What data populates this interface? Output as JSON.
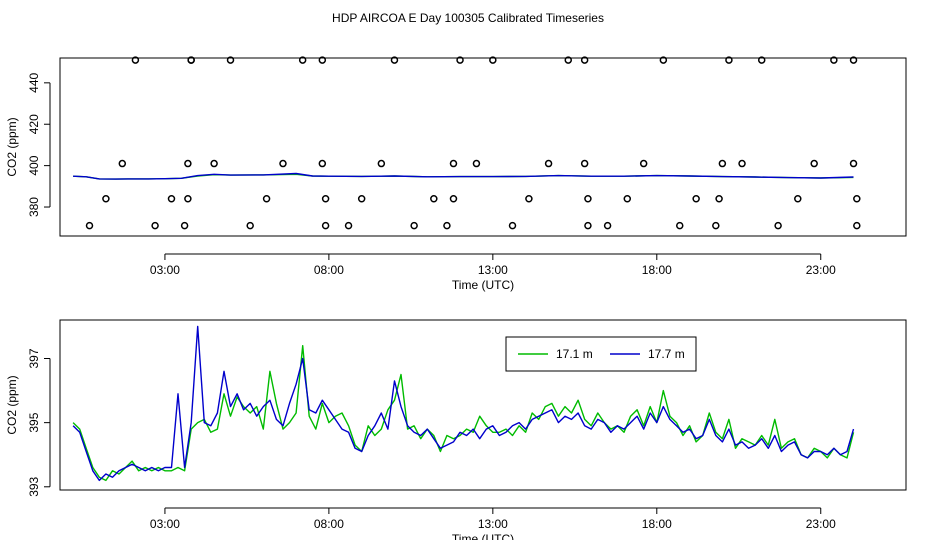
{
  "title": "HDP AIRCOA E  Day 100305  Calibrated Timeseries",
  "colors": {
    "s1": "#00bb00",
    "s2": "#0000cc",
    "axis": "#000000"
  },
  "chart_data": [
    {
      "type": "line",
      "xlabel": "Time (UTC)",
      "ylabel": "CO2 (ppm)",
      "x_tick_labels": [
        "03:00",
        "08:00",
        "13:00",
        "18:00",
        "23:00"
      ],
      "x_ticks": [
        3,
        8,
        13,
        18,
        23
      ],
      "y_ticks": [
        380,
        400,
        420,
        440
      ],
      "xlim": [
        -0.2,
        25.6
      ],
      "ylim": [
        366,
        452
      ],
      "box": true,
      "legend": "none",
      "series": [
        {
          "name": "",
          "color": "#00bb00",
          "x": [
            0.2,
            0.6,
            1.0,
            1.5,
            2.0,
            2.5,
            3.0,
            3.5,
            4.0,
            4.5,
            5.0,
            6.0,
            7.0,
            7.5,
            8.0,
            9.0,
            10.0,
            11.0,
            12.0,
            13.0,
            14.0,
            15.0,
            16.0,
            17.0,
            18.0,
            19.0,
            20.0,
            21.0,
            22.0,
            23.0,
            24.0
          ],
          "y": [
            394.9,
            394.6,
            393.6,
            393.5,
            393.6,
            393.6,
            393.7,
            393.9,
            395.0,
            395.6,
            395.4,
            395.5,
            395.8,
            395.0,
            394.9,
            394.8,
            395.0,
            394.6,
            394.7,
            394.7,
            394.8,
            395.2,
            394.9,
            394.9,
            395.2,
            395.0,
            394.7,
            394.5,
            394.2,
            394.0,
            394.3
          ]
        },
        {
          "name": "",
          "color": "#0000cc",
          "x": [
            0.2,
            0.6,
            1.0,
            1.5,
            2.0,
            2.5,
            3.0,
            3.5,
            4.0,
            4.5,
            5.0,
            6.0,
            7.0,
            7.5,
            8.0,
            9.0,
            10.0,
            11.0,
            12.0,
            13.0,
            14.0,
            15.0,
            16.0,
            17.0,
            18.0,
            19.0,
            20.0,
            21.0,
            22.0,
            23.0,
            24.0
          ],
          "y": [
            394.9,
            394.6,
            393.6,
            393.5,
            393.6,
            393.6,
            393.7,
            393.9,
            395.2,
            395.8,
            395.4,
            395.5,
            396.2,
            395.0,
            394.9,
            394.8,
            395.0,
            394.6,
            394.7,
            394.7,
            394.8,
            395.2,
            394.9,
            394.9,
            395.2,
            395.0,
            394.7,
            394.5,
            394.2,
            394.0,
            394.5
          ]
        }
      ],
      "calibration_points": {
        "x": [
          0.7,
          1.2,
          1.7,
          2.1,
          2.7,
          3.2,
          3.6,
          3.7,
          3.7,
          3.8,
          3.8,
          4.5,
          5.0,
          5.6,
          6.1,
          6.6,
          7.2,
          7.8,
          7.8,
          7.9,
          7.9,
          8.6,
          9.0,
          9.6,
          10.0,
          10.6,
          11.2,
          11.6,
          11.8,
          11.8,
          12.0,
          12.5,
          13.0,
          13.6,
          14.1,
          14.7,
          15.3,
          15.8,
          15.8,
          15.9,
          15.9,
          16.5,
          17.1,
          17.6,
          18.2,
          18.7,
          19.2,
          19.8,
          19.9,
          20.0,
          20.2,
          20.6,
          21.2,
          21.7,
          22.3,
          22.8,
          23.4,
          24.0,
          24.0,
          24.1,
          24.1
        ],
        "y": [
          371,
          384,
          401,
          451,
          371,
          384,
          371,
          384,
          401,
          451,
          451,
          401,
          451,
          371,
          384,
          401,
          451,
          451,
          401,
          384,
          371,
          371,
          384,
          401,
          451,
          371,
          384,
          371,
          384,
          401,
          451,
          401,
          451,
          371,
          384,
          401,
          451,
          451,
          401,
          384,
          371,
          371,
          384,
          401,
          451,
          371,
          384,
          371,
          384,
          401,
          451,
          401,
          451,
          371,
          384,
          401,
          451,
          451,
          401,
          384,
          371
        ]
      }
    },
    {
      "type": "line",
      "xlabel": "Time (UTC)",
      "ylabel": "CO2 (ppm)",
      "x_tick_labels": [
        "03:00",
        "08:00",
        "13:00",
        "18:00",
        "23:00"
      ],
      "x_ticks": [
        3,
        8,
        13,
        18,
        23
      ],
      "y_ticks": [
        393,
        395,
        397
      ],
      "xlim": [
        -0.2,
        25.6
      ],
      "ylim": [
        392.9,
        398.2
      ],
      "box": true,
      "legend": "top-center",
      "series": [
        {
          "name": "17.1 m",
          "color": "#00bb00",
          "x": [
            0.2,
            0.4,
            0.6,
            0.8,
            1.0,
            1.2,
            1.4,
            1.6,
            1.8,
            2.0,
            2.2,
            2.4,
            2.6,
            2.8,
            3.0,
            3.2,
            3.4,
            3.6,
            3.8,
            4.0,
            4.2,
            4.4,
            4.6,
            4.8,
            5.0,
            5.2,
            5.4,
            5.6,
            5.8,
            6.0,
            6.2,
            6.4,
            6.6,
            6.8,
            7.0,
            7.2,
            7.4,
            7.6,
            7.8,
            8.0,
            8.2,
            8.4,
            8.6,
            8.8,
            9.0,
            9.2,
            9.4,
            9.6,
            9.8,
            10.0,
            10.2,
            10.4,
            10.6,
            10.8,
            11.0,
            11.2,
            11.4,
            11.6,
            11.8,
            12.0,
            12.2,
            12.4,
            12.6,
            12.8,
            13.0,
            13.2,
            13.4,
            13.6,
            13.8,
            14.0,
            14.2,
            14.4,
            14.6,
            14.8,
            15.0,
            15.2,
            15.4,
            15.6,
            15.8,
            16.0,
            16.2,
            16.4,
            16.6,
            16.8,
            17.0,
            17.2,
            17.4,
            17.6,
            17.8,
            18.0,
            18.2,
            18.4,
            18.6,
            18.8,
            19.0,
            19.2,
            19.4,
            19.6,
            19.8,
            20.0,
            20.2,
            20.4,
            20.6,
            20.8,
            21.0,
            21.2,
            21.4,
            21.6,
            21.8,
            22.0,
            22.2,
            22.4,
            22.6,
            22.8,
            23.0,
            23.2,
            23.4,
            23.6,
            23.8,
            24.0
          ],
          "y": [
            395.0,
            394.8,
            394.2,
            393.6,
            393.3,
            393.2,
            393.5,
            393.4,
            393.6,
            393.8,
            393.5,
            393.6,
            393.5,
            393.6,
            393.5,
            393.5,
            393.6,
            393.5,
            394.8,
            395.0,
            395.1,
            394.7,
            394.8,
            395.9,
            395.2,
            395.8,
            395.5,
            395.3,
            395.5,
            394.8,
            396.6,
            395.6,
            394.8,
            395.0,
            395.3,
            397.4,
            395.2,
            394.8,
            395.6,
            395.0,
            395.2,
            395.3,
            394.9,
            394.3,
            394.1,
            394.9,
            394.6,
            394.8,
            395.4,
            395.7,
            396.5,
            394.8,
            394.9,
            394.5,
            394.8,
            394.6,
            394.1,
            394.6,
            394.5,
            394.6,
            394.8,
            394.7,
            395.2,
            394.9,
            394.7,
            394.7,
            394.8,
            394.6,
            394.9,
            394.7,
            395.3,
            395.1,
            395.5,
            395.6,
            395.2,
            395.5,
            395.3,
            395.7,
            395.1,
            394.9,
            395.3,
            395.0,
            394.8,
            394.9,
            394.7,
            395.2,
            395.4,
            394.9,
            395.5,
            395.0,
            396.0,
            395.2,
            395.0,
            394.6,
            394.9,
            394.4,
            394.6,
            395.3,
            394.7,
            394.5,
            395.1,
            394.2,
            394.5,
            394.4,
            394.3,
            394.6,
            394.3,
            395.1,
            394.2,
            394.4,
            394.5,
            394.0,
            393.9,
            394.2,
            394.1,
            393.9,
            394.2,
            394.0,
            393.9,
            394.7
          ]
        },
        {
          "name": "17.7 m",
          "color": "#0000cc",
          "x": [
            0.2,
            0.4,
            0.6,
            0.8,
            1.0,
            1.2,
            1.4,
            1.6,
            1.8,
            2.0,
            2.2,
            2.4,
            2.6,
            2.8,
            3.0,
            3.2,
            3.4,
            3.6,
            3.8,
            4.0,
            4.2,
            4.4,
            4.6,
            4.8,
            5.0,
            5.2,
            5.4,
            5.6,
            5.8,
            6.0,
            6.2,
            6.4,
            6.6,
            6.8,
            7.0,
            7.2,
            7.4,
            7.6,
            7.8,
            8.0,
            8.2,
            8.4,
            8.6,
            8.8,
            9.0,
            9.2,
            9.4,
            9.6,
            9.8,
            10.0,
            10.2,
            10.4,
            10.6,
            10.8,
            11.0,
            11.2,
            11.4,
            11.6,
            11.8,
            12.0,
            12.2,
            12.4,
            12.6,
            12.8,
            13.0,
            13.2,
            13.4,
            13.6,
            13.8,
            14.0,
            14.2,
            14.4,
            14.6,
            14.8,
            15.0,
            15.2,
            15.4,
            15.6,
            15.8,
            16.0,
            16.2,
            16.4,
            16.6,
            16.8,
            17.0,
            17.2,
            17.4,
            17.6,
            17.8,
            18.0,
            18.2,
            18.4,
            18.6,
            18.8,
            19.0,
            19.2,
            19.4,
            19.6,
            19.8,
            20.0,
            20.2,
            20.4,
            20.6,
            20.8,
            21.0,
            21.2,
            21.4,
            21.6,
            21.8,
            22.0,
            22.2,
            22.4,
            22.6,
            22.8,
            23.0,
            23.2,
            23.4,
            23.6,
            23.8,
            24.0
          ],
          "y": [
            394.9,
            394.7,
            394.1,
            393.5,
            393.2,
            393.4,
            393.3,
            393.5,
            393.6,
            393.7,
            393.6,
            393.5,
            393.6,
            393.5,
            393.6,
            393.6,
            395.9,
            393.6,
            395.0,
            398.0,
            395.0,
            394.9,
            395.3,
            396.6,
            395.5,
            395.9,
            395.4,
            395.6,
            395.2,
            395.5,
            395.7,
            395.1,
            394.9,
            395.6,
            396.2,
            397.0,
            395.4,
            395.3,
            395.7,
            395.4,
            395.1,
            394.8,
            394.7,
            394.2,
            394.1,
            394.6,
            394.9,
            395.3,
            394.8,
            396.3,
            395.5,
            394.9,
            394.7,
            394.6,
            394.8,
            394.5,
            394.2,
            394.3,
            394.4,
            394.7,
            394.6,
            394.8,
            394.5,
            394.8,
            394.9,
            394.6,
            394.7,
            394.9,
            395.0,
            394.8,
            395.1,
            395.2,
            395.3,
            395.4,
            395.0,
            395.2,
            395.1,
            395.3,
            394.9,
            394.8,
            395.1,
            395.0,
            394.7,
            394.9,
            394.8,
            395.0,
            395.2,
            394.8,
            395.3,
            395.0,
            395.5,
            395.1,
            394.9,
            394.7,
            394.8,
            394.5,
            394.6,
            395.1,
            394.6,
            394.4,
            394.8,
            394.3,
            394.4,
            394.2,
            394.3,
            394.5,
            394.2,
            394.6,
            394.1,
            394.3,
            394.4,
            394.0,
            393.9,
            394.1,
            394.1,
            394.0,
            394.2,
            394.0,
            394.1,
            394.8
          ]
        }
      ]
    }
  ]
}
